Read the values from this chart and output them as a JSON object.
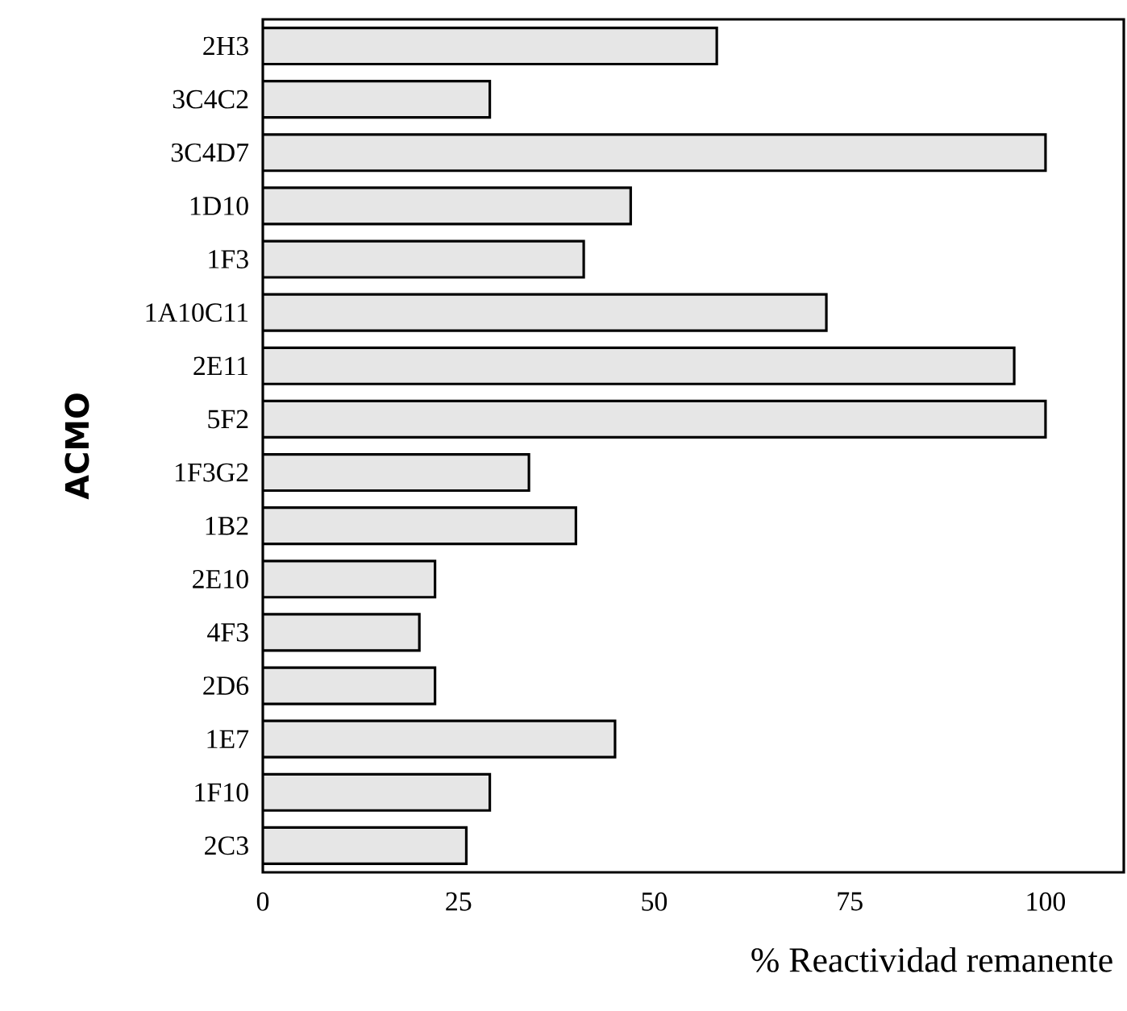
{
  "chart_data": {
    "type": "bar",
    "orientation": "horizontal",
    "xlabel": "% Reactividad remanente",
    "ylabel": "ACMO",
    "categories": [
      "2H3",
      "3C4C2",
      "3C4D7",
      "1D10",
      "1F3",
      "1A10C11",
      "2E11",
      "5F2",
      "1F3G2",
      "1B2",
      "2E10",
      "4F3",
      "2D6",
      "1E7",
      "1F10",
      "2C3"
    ],
    "values": [
      58,
      29,
      100,
      47,
      41,
      72,
      96,
      100,
      34,
      40,
      22,
      20,
      22,
      45,
      29,
      26
    ],
    "color": "#e6e6e6",
    "xlim": [
      0,
      110
    ],
    "xticks": [
      0,
      25,
      50,
      75,
      100
    ]
  }
}
